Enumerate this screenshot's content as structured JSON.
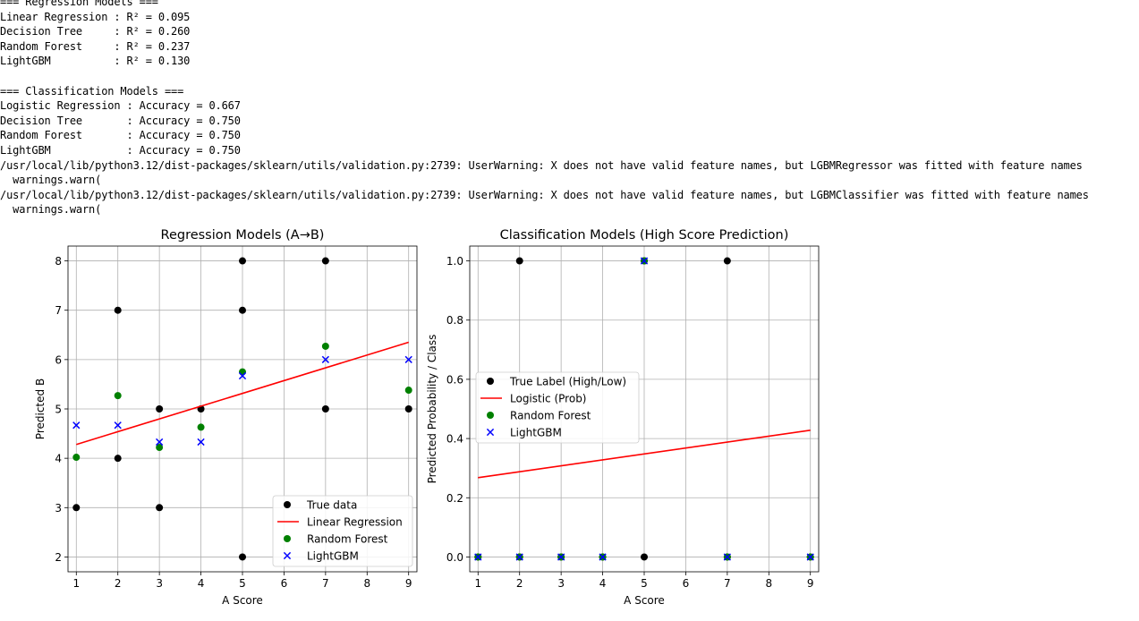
{
  "console": {
    "lines": [
      "=== Regression Models ===",
      "Linear Regression : R² = 0.095",
      "Decision Tree     : R² = 0.260",
      "Random Forest     : R² = 0.237",
      "LightGBM          : R² = 0.130",
      "",
      "=== Classification Models ===",
      "Logistic Regression : Accuracy = 0.667",
      "Decision Tree       : Accuracy = 0.750",
      "Random Forest       : Accuracy = 0.750",
      "LightGBM            : Accuracy = 0.750",
      "/usr/local/lib/python3.12/dist-packages/sklearn/utils/validation.py:2739: UserWarning: X does not have valid feature names, but LGBMRegressor was fitted with feature names",
      "  warnings.warn(",
      "/usr/local/lib/python3.12/dist-packages/sklearn/utils/validation.py:2739: UserWarning: X does not have valid feature names, but LGBMClassifier was fitted with feature names",
      "  warnings.warn("
    ]
  },
  "colors": {
    "true": "#000000",
    "line": "#ff0000",
    "rf": "#008000",
    "lgbm": "#0000ff",
    "grid": "#b0b0b0"
  },
  "chart_data": [
    {
      "type": "scatter",
      "title": "Regression Models (A→B)",
      "xlabel": "A Score",
      "ylabel": "Predicted B",
      "xlim": [
        0.8,
        9.2
      ],
      "ylim": [
        1.7,
        8.3
      ],
      "xticks": [
        1,
        2,
        3,
        4,
        5,
        6,
        7,
        8,
        9
      ],
      "yticks": [
        2,
        3,
        4,
        5,
        6,
        7,
        8
      ],
      "grid": true,
      "legend": "lower-right",
      "series": [
        {
          "name": "True data",
          "kind": "point",
          "marker": "circle",
          "color": "#000000",
          "x": [
            1,
            2,
            2,
            3,
            3,
            4,
            5,
            5,
            5,
            7,
            7,
            9
          ],
          "y": [
            3,
            7,
            4,
            5,
            3,
            5,
            8,
            7,
            2,
            8,
            5,
            5
          ]
        },
        {
          "name": "Linear Regression",
          "kind": "line",
          "color": "#ff0000",
          "x": [
            1,
            9
          ],
          "y": [
            4.28,
            6.35
          ]
        },
        {
          "name": "Random Forest",
          "kind": "point",
          "marker": "circle",
          "color": "#008000",
          "x": [
            1,
            2,
            3,
            4,
            5,
            7,
            9
          ],
          "y": [
            4.02,
            5.27,
            4.22,
            4.63,
            5.75,
            6.27,
            5.38
          ]
        },
        {
          "name": "LightGBM",
          "kind": "point",
          "marker": "x",
          "color": "#0000ff",
          "x": [
            1,
            2,
            3,
            4,
            5,
            7,
            9
          ],
          "y": [
            4.67,
            4.67,
            4.33,
            4.33,
            5.67,
            6.0,
            6.0
          ]
        }
      ]
    },
    {
      "type": "scatter",
      "title": "Classification Models (High Score Prediction)",
      "xlabel": "A Score",
      "ylabel": "Predicted Probability / Class",
      "xlim": [
        0.8,
        9.2
      ],
      "ylim": [
        -0.05,
        1.05
      ],
      "xticks": [
        1,
        2,
        3,
        4,
        5,
        6,
        7,
        8,
        9
      ],
      "yticks": [
        0.0,
        0.2,
        0.4,
        0.6,
        0.8,
        1.0
      ],
      "grid": true,
      "legend": "center-left",
      "series": [
        {
          "name": "True Label (High/Low)",
          "kind": "point",
          "marker": "circle",
          "color": "#000000",
          "x": [
            1,
            2,
            2,
            3,
            4,
            5,
            5,
            7,
            7,
            9
          ],
          "y": [
            0,
            1,
            0,
            0,
            0,
            1,
            0,
            1,
            0,
            0
          ]
        },
        {
          "name": "Logistic (Prob)",
          "kind": "line",
          "color": "#ff0000",
          "x": [
            1,
            9
          ],
          "y": [
            0.268,
            0.428
          ]
        },
        {
          "name": "Random Forest",
          "kind": "point",
          "marker": "circle",
          "color": "#008000",
          "x": [
            1,
            2,
            3,
            4,
            5,
            7,
            9
          ],
          "y": [
            0,
            0,
            0,
            0,
            1,
            0,
            0
          ]
        },
        {
          "name": "LightGBM",
          "kind": "point",
          "marker": "x",
          "color": "#0000ff",
          "x": [
            1,
            2,
            3,
            4,
            5,
            7,
            9
          ],
          "y": [
            0,
            0,
            0,
            0,
            1,
            0,
            0
          ]
        }
      ]
    }
  ]
}
